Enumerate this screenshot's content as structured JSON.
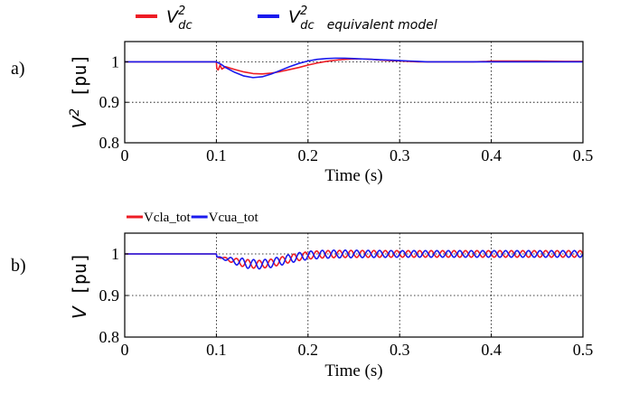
{
  "chart_data": [
    {
      "panel_label": "a)",
      "type": "line",
      "legend": {
        "placement": "top",
        "entries": [
          {
            "symbol": "V",
            "sub": "dc",
            "sup": "2",
            "suffix": "",
            "color": "#ee1c24"
          },
          {
            "symbol": "V",
            "sub": "dc",
            "sup": "2",
            "suffix": "equivalent model",
            "color": "#1a1aee"
          }
        ]
      },
      "ylabel": {
        "symbol": "V",
        "sup": "2",
        "unit": "[pu]"
      },
      "xlabel": "Time (s)",
      "xlim": [
        0,
        0.5
      ],
      "ylim": [
        0.8,
        1.05
      ],
      "xticks": [
        "0",
        "0.1",
        "0.2",
        "0.3",
        "0.4",
        "0.5"
      ],
      "yticks": [
        "0.8",
        "0.9",
        "1"
      ],
      "grid": "dotted",
      "series": [
        {
          "color": "#ee1c24",
          "x": [
            0,
            0.1,
            0.1005,
            0.102,
            0.104,
            0.106,
            0.11,
            0.12,
            0.13,
            0.14,
            0.15,
            0.16,
            0.17,
            0.18,
            0.19,
            0.2,
            0.21,
            0.22,
            0.23,
            0.24,
            0.25,
            0.26,
            0.27,
            0.28,
            0.29,
            0.3,
            0.31,
            0.32,
            0.33,
            0.335,
            0.34,
            0.36,
            0.38,
            0.395,
            0.4,
            0.42,
            0.45,
            0.48,
            0.5
          ],
          "y": [
            1.0,
            1.0,
            0.983,
            0.98,
            0.992,
            0.982,
            0.988,
            0.981,
            0.975,
            0.971,
            0.97,
            0.972,
            0.976,
            0.981,
            0.986,
            0.992,
            0.997,
            1.001,
            1.004,
            1.006,
            1.007,
            1.007,
            1.006,
            1.004,
            1.003,
            1.002,
            1.001,
            1.0,
            1.0,
            1.0,
            1.0,
            1.0,
            1.0,
            1.001,
            1.002,
            1.002,
            1.002,
            1.001,
            1.001
          ]
        },
        {
          "color": "#1a1aee",
          "x": [
            0,
            0.1,
            0.105,
            0.11,
            0.12,
            0.13,
            0.14,
            0.15,
            0.16,
            0.17,
            0.18,
            0.19,
            0.2,
            0.21,
            0.22,
            0.23,
            0.24,
            0.25,
            0.26,
            0.27,
            0.28,
            0.29,
            0.3,
            0.31,
            0.32,
            0.33,
            0.34,
            0.36,
            0.38,
            0.4,
            0.45,
            0.5
          ],
          "y": [
            1.0,
            1.0,
            0.994,
            0.986,
            0.974,
            0.965,
            0.961,
            0.963,
            0.97,
            0.979,
            0.988,
            0.996,
            1.002,
            1.006,
            1.008,
            1.009,
            1.009,
            1.008,
            1.007,
            1.006,
            1.005,
            1.004,
            1.003,
            1.002,
            1.001,
            1.0,
            1.0,
            1.0,
            1.0,
            1.0,
            1.0,
            1.0
          ]
        }
      ]
    },
    {
      "panel_label": "b)",
      "type": "line",
      "legend": {
        "placement": "top-left",
        "entries": [
          {
            "text": "Vcla_tot",
            "color": "#ee1c24"
          },
          {
            "text": "Vcua_tot",
            "color": "#1a1aee"
          }
        ]
      },
      "ylabel": {
        "symbol": "V",
        "unit": "[pu]"
      },
      "xlabel": "Time (s)",
      "xlim": [
        0,
        0.5
      ],
      "ylim": [
        0.8,
        1.05
      ],
      "xticks": [
        "0",
        "0.1",
        "0.2",
        "0.3",
        "0.4",
        "0.5"
      ],
      "yticks": [
        "0.8",
        "0.9",
        "1"
      ],
      "grid": "dotted",
      "series": [
        {
          "color": "#ee1c24",
          "oscillation": {
            "start": 0.1,
            "period": 0.0125,
            "phase": 0.5,
            "amp_peak": 0.01,
            "amp_final": 0.008,
            "mean_dip": 0.025,
            "dip_center": 0.145,
            "dip_width": 0.04,
            "recover_time": 0.3
          }
        },
        {
          "color": "#1a1aee",
          "oscillation": {
            "start": 0.1,
            "period": 0.0125,
            "phase": 0.0,
            "amp_peak": 0.012,
            "amp_final": 0.008,
            "mean_dip": 0.025,
            "dip_center": 0.145,
            "dip_width": 0.04,
            "recover_time": 0.3
          }
        }
      ]
    }
  ]
}
